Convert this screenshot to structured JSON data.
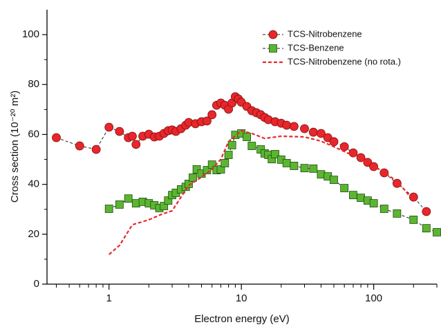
{
  "chart_data": {
    "type": "scatter",
    "xlabel": "Electron energy (eV)",
    "ylabel": "Cross section (10⁻²⁰ m²)",
    "xscale": "log",
    "xlim": [
      0.34,
      300
    ],
    "ylim": [
      0,
      110
    ],
    "xticks": [
      1,
      10,
      100
    ],
    "yticks": [
      0,
      20,
      40,
      60,
      80,
      100
    ],
    "legend": "upper right",
    "series": [
      {
        "name": "TCS-Nitrobenzene",
        "color": "#e8262b",
        "marker": "circle",
        "line_color": "#222222",
        "dash": true,
        "x": [
          0.4,
          0.6,
          0.8,
          1.0,
          1.2,
          1.4,
          1.5,
          1.6,
          1.8,
          2.0,
          2.2,
          2.4,
          2.6,
          2.8,
          3.0,
          3.2,
          3.5,
          3.8,
          4.0,
          4.5,
          5,
          5.5,
          6,
          6.5,
          7,
          7.5,
          8,
          8.5,
          9,
          9.5,
          10,
          11,
          12,
          13,
          14,
          15,
          16,
          18,
          20,
          22,
          25,
          30,
          35,
          40,
          45,
          50,
          60,
          70,
          80,
          90,
          100,
          120,
          150,
          200,
          250
        ],
        "values": [
          58.7,
          55.4,
          54.0,
          62.9,
          61.2,
          58.7,
          59.3,
          56.0,
          59.3,
          60.1,
          59.0,
          59.3,
          60.4,
          61.5,
          61.8,
          61.2,
          62.3,
          63.7,
          64.8,
          64.3,
          65.1,
          65.4,
          67.9,
          71.7,
          72.6,
          71.7,
          70.1,
          72.6,
          75.1,
          74.2,
          72.9,
          71.2,
          69.5,
          68.7,
          67.9,
          66.8,
          65.9,
          65.1,
          64.5,
          63.7,
          63.2,
          62.3,
          60.9,
          60.4,
          58.7,
          57.1,
          55.1,
          52.6,
          50.7,
          48.8,
          47.1,
          44.6,
          40.4,
          34.9,
          29.1
        ]
      },
      {
        "name": "TCS-Benzene",
        "color": "#5cb531",
        "marker": "square",
        "line_color": "#222222",
        "dash": true,
        "x": [
          1.0,
          1.2,
          1.4,
          1.6,
          1.8,
          2.0,
          2.2,
          2.4,
          2.6,
          2.8,
          3.0,
          3.2,
          3.5,
          3.8,
          4.0,
          4.3,
          4.6,
          5,
          5.5,
          6,
          6.5,
          7,
          7.5,
          8,
          8.5,
          9,
          10,
          11,
          12,
          14,
          15,
          16,
          17,
          18,
          20,
          22,
          25,
          30,
          35,
          40,
          45,
          50,
          60,
          70,
          80,
          90,
          100,
          120,
          150,
          200,
          250,
          300
        ],
        "values": [
          30.2,
          31.9,
          34.3,
          32.4,
          33.0,
          32.4,
          31.6,
          30.5,
          31.3,
          33.5,
          35.7,
          36.6,
          38.0,
          39.0,
          40.2,
          42.7,
          46.0,
          44.3,
          45.7,
          47.9,
          45.7,
          46.0,
          48.5,
          51.8,
          55.7,
          59.8,
          60.4,
          59.0,
          55.4,
          54.0,
          52.4,
          51.8,
          50.1,
          52.1,
          49.9,
          48.5,
          47.4,
          46.5,
          46.3,
          44.0,
          43.2,
          41.8,
          38.5,
          35.7,
          34.6,
          33.5,
          32.4,
          30.2,
          28.3,
          25.8,
          22.4,
          20.8
        ]
      },
      {
        "name": "TCS-Nitrobenzene (no rota.)",
        "color": "#e8262b",
        "marker": null,
        "line_color": "#e8262b",
        "dash": true,
        "x": [
          1.0,
          1.2,
          1.5,
          2,
          2.5,
          3,
          3.5,
          4,
          5,
          6,
          7,
          8,
          10,
          12,
          15,
          20,
          30,
          40,
          50,
          70,
          100,
          150,
          200
        ],
        "values": [
          11.9,
          15.5,
          23.8,
          25.8,
          28.0,
          29.4,
          34.9,
          39.6,
          42.9,
          46.0,
          50.1,
          57.1,
          61.5,
          60.4,
          58.4,
          59.3,
          59.0,
          57.3,
          55.1,
          51.5,
          47.4,
          41.3,
          33.5
        ]
      }
    ]
  }
}
